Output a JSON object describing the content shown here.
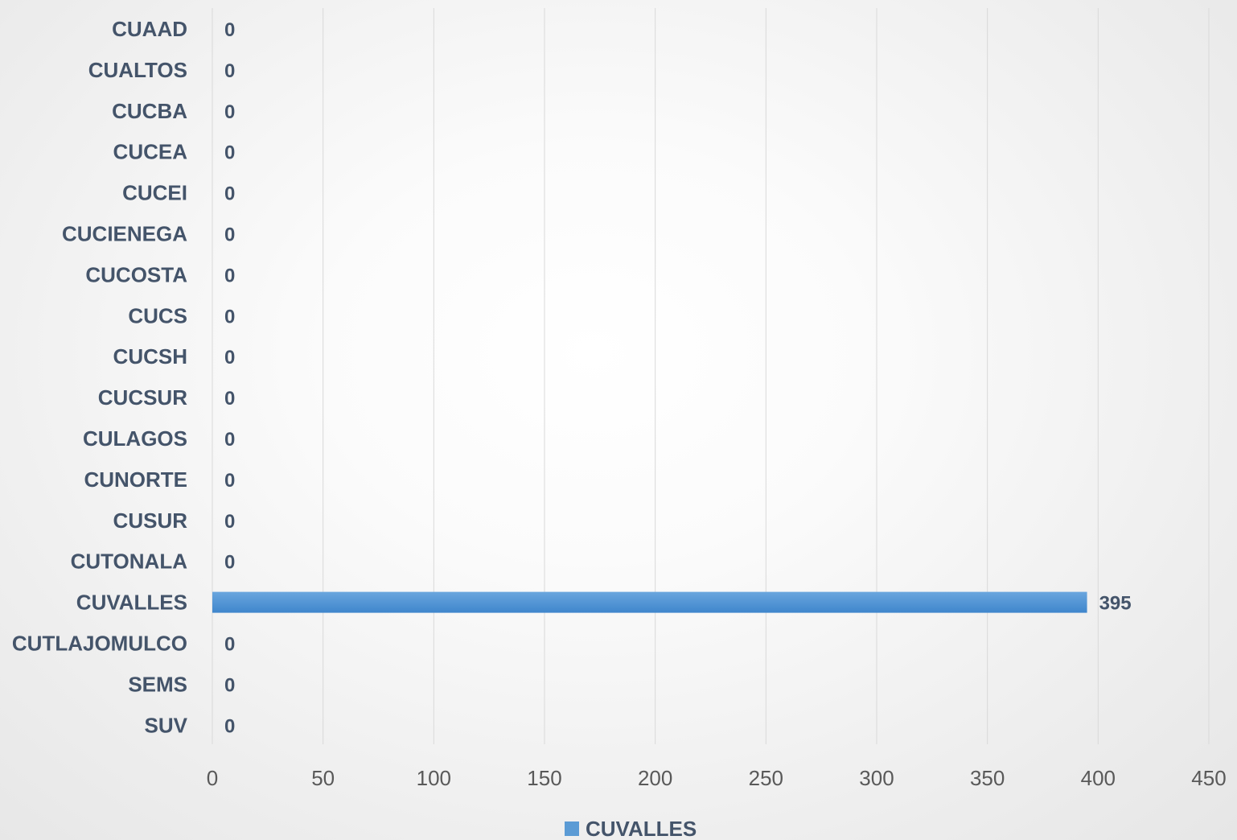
{
  "chart_data": {
    "type": "bar",
    "orientation": "horizontal",
    "categories": [
      "CUAAD",
      "CUALTOS",
      "CUCBA",
      "CUCEA",
      "CUCEI",
      "CUCIENEGA",
      "CUCOSTA",
      "CUCS",
      "CUCSH",
      "CUCSUR",
      "CULAGOS",
      "CUNORTE",
      "CUSUR",
      "CUTONALA",
      "CUVALLES",
      "CUTLAJOMULCO",
      "SEMS",
      "SUV"
    ],
    "series": [
      {
        "name": "CUVALLES",
        "values": [
          0,
          0,
          0,
          0,
          0,
          0,
          0,
          0,
          0,
          0,
          0,
          0,
          0,
          0,
          395,
          0,
          0,
          0
        ],
        "color": "#5b9bd5"
      }
    ],
    "xlim": [
      0,
      450
    ],
    "xticks": [
      0,
      50,
      100,
      150,
      200,
      250,
      300,
      350,
      400,
      450
    ],
    "grid": true,
    "legend": "bottom",
    "data_labels": true
  }
}
